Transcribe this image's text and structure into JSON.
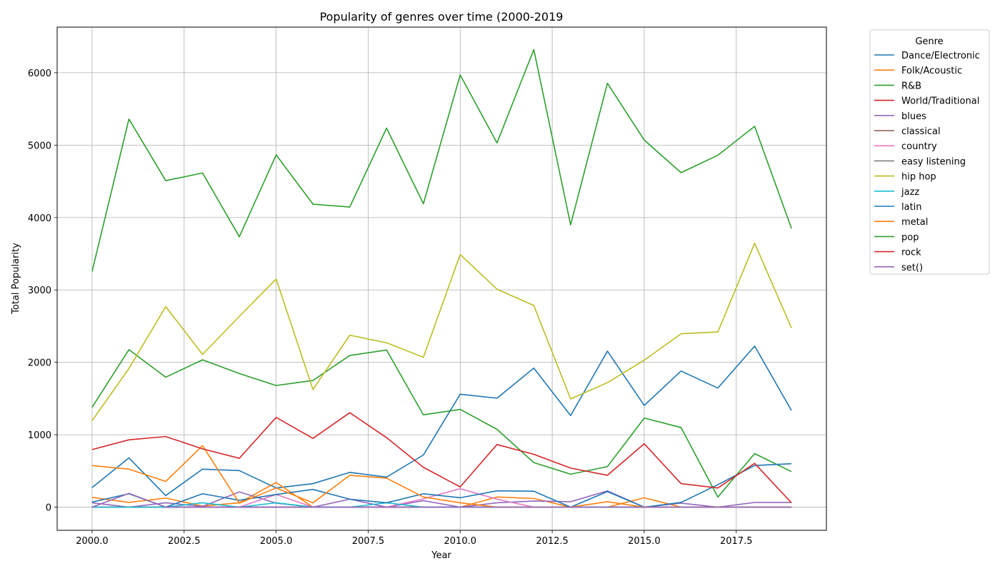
{
  "chart_data": {
    "type": "line",
    "title": "Popularity of genres over time (2000-2019",
    "xlabel": "Year",
    "ylabel": "Total Popularity",
    "xlim": [
      1999.05,
      2019.95
    ],
    "ylim": [
      -320,
      6630
    ],
    "xticks": [
      2000.0,
      2002.5,
      2005.0,
      2007.5,
      2010.0,
      2012.5,
      2015.0,
      2017.5
    ],
    "xtick_labels": [
      "2000.0",
      "2002.5",
      "2005.0",
      "2007.5",
      "2010.0",
      "2012.5",
      "2015.0",
      "2017.5"
    ],
    "yticks": [
      0,
      1000,
      2000,
      3000,
      4000,
      5000,
      6000
    ],
    "ytick_labels": [
      "0",
      "1000",
      "2000",
      "3000",
      "4000",
      "5000",
      "6000"
    ],
    "grid": true,
    "legend_title": "Genre",
    "legend_position": "outside-right",
    "x": [
      2000,
      2001,
      2002,
      2003,
      2004,
      2005,
      2006,
      2007,
      2008,
      2009,
      2010,
      2011,
      2012,
      2013,
      2014,
      2015,
      2016,
      2017,
      2018,
      2019
    ],
    "series": [
      {
        "name": "Dance/Electronic",
        "color": "#1f77b4",
        "values": [
          270,
          680,
          160,
          525,
          505,
          265,
          325,
          480,
          415,
          720,
          1560,
          1505,
          1920,
          1265,
          2155,
          1405,
          1880,
          1645,
          2225,
          1335
        ]
      },
      {
        "name": "Folk/Acoustic",
        "color": "#ff7f0e",
        "values": [
          135,
          65,
          125,
          15,
          60,
          340,
          0,
          0,
          0,
          0,
          0,
          140,
          120,
          0,
          0,
          130,
          0,
          0,
          0,
          0
        ]
      },
      {
        "name": "R&B",
        "color": "#2ca02c",
        "values": [
          1380,
          2175,
          1795,
          2035,
          1845,
          1680,
          1750,
          2095,
          2170,
          1275,
          1350,
          1075,
          615,
          455,
          560,
          1230,
          1100,
          140,
          740,
          490
        ]
      },
      {
        "name": "World/Traditional",
        "color": "#d62728",
        "values": [
          0,
          0,
          0,
          0,
          0,
          0,
          0,
          0,
          0,
          0,
          0,
          0,
          0,
          0,
          0,
          0,
          0,
          0,
          0,
          0
        ]
      },
      {
        "name": "blues",
        "color": "#9467bd",
        "values": [
          60,
          0,
          60,
          10,
          210,
          55,
          0,
          110,
          0,
          90,
          0,
          60,
          85,
          75,
          225,
          0,
          55,
          0,
          65,
          65
        ]
      },
      {
        "name": "classical",
        "color": "#8c564b",
        "values": [
          0,
          0,
          0,
          0,
          0,
          0,
          0,
          0,
          0,
          0,
          0,
          0,
          0,
          0,
          0,
          0,
          0,
          0,
          0,
          0
        ]
      },
      {
        "name": "country",
        "color": "#e377c2",
        "values": [
          0,
          0,
          0,
          0,
          0,
          175,
          0,
          0,
          0,
          115,
          255,
          110,
          0,
          0,
          0,
          0,
          0,
          0,
          0,
          0
        ]
      },
      {
        "name": "easy listening",
        "color": "#7f7f7f",
        "values": [
          0,
          0,
          0,
          0,
          0,
          0,
          0,
          0,
          0,
          0,
          0,
          0,
          0,
          0,
          0,
          0,
          0,
          0,
          0,
          0
        ]
      },
      {
        "name": "hip hop",
        "color": "#bcbd22",
        "values": [
          1195,
          1915,
          2770,
          2110,
          2635,
          3150,
          1625,
          2375,
          2270,
          2070,
          3490,
          3010,
          2785,
          1495,
          1720,
          2030,
          2395,
          2420,
          3645,
          2475
        ]
      },
      {
        "name": "jazz",
        "color": "#17becf",
        "values": [
          0,
          0,
          0,
          60,
          0,
          60,
          0,
          0,
          60,
          0,
          0,
          0,
          0,
          0,
          0,
          0,
          0,
          0,
          0,
          0
        ]
      },
      {
        "name": "latin",
        "color": "#1f77b4",
        "values": [
          70,
          185,
          0,
          185,
          95,
          175,
          245,
          110,
          60,
          185,
          130,
          225,
          220,
          0,
          215,
          0,
          65,
          310,
          575,
          600
        ]
      },
      {
        "name": "metal",
        "color": "#ff7f0e",
        "values": [
          575,
          525,
          355,
          850,
          55,
          265,
          60,
          440,
          400,
          140,
          60,
          0,
          0,
          0,
          75,
          0,
          0,
          0,
          0,
          0
        ]
      },
      {
        "name": "pop",
        "color": "#2ca02c",
        "values": [
          3255,
          5360,
          4510,
          4615,
          3735,
          4865,
          4185,
          4145,
          5235,
          4190,
          5970,
          5030,
          6320,
          3900,
          5855,
          5070,
          4620,
          4860,
          5260,
          3850
        ]
      },
      {
        "name": "rock",
        "color": "#d62728",
        "values": [
          795,
          930,
          975,
          805,
          675,
          1240,
          950,
          1305,
          960,
          550,
          280,
          865,
          730,
          540,
          440,
          875,
          325,
          265,
          605,
          60
        ]
      },
      {
        "name": "set()",
        "color": "#9467bd",
        "values": [
          0,
          190,
          0,
          0,
          0,
          0,
          0,
          0,
          0,
          0,
          0,
          0,
          0,
          0,
          0,
          0,
          0,
          0,
          0,
          0
        ]
      }
    ]
  }
}
